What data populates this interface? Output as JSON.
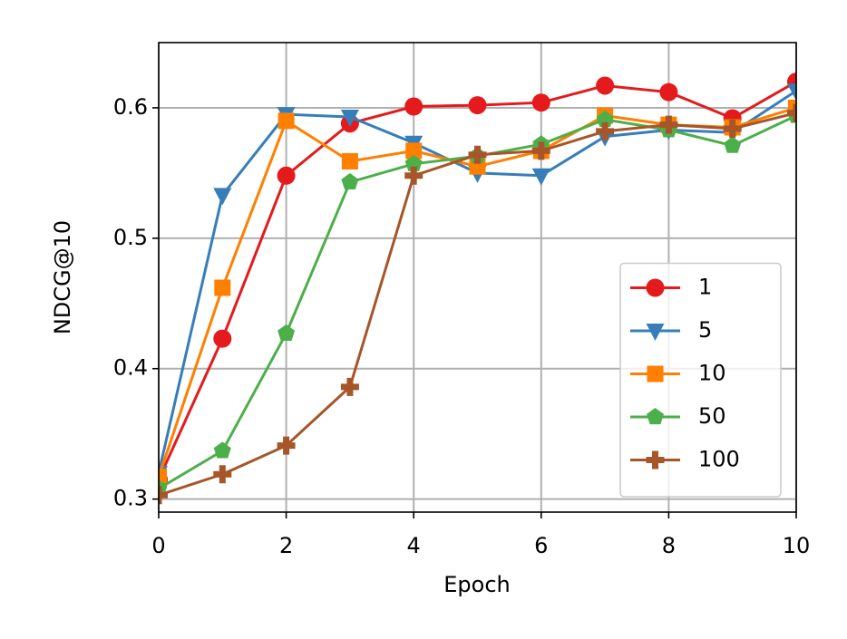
{
  "chart_data": {
    "type": "line",
    "x_label": "Epoch",
    "y_label": "NDCG@10",
    "x": [
      0,
      1,
      2,
      3,
      4,
      5,
      6,
      7,
      8,
      9,
      10
    ],
    "series": [
      {
        "name": "1",
        "color": "#e41a1c",
        "marker": "circle",
        "values": [
          0.315,
          0.423,
          0.548,
          0.588,
          0.601,
          0.602,
          0.604,
          0.617,
          0.612,
          0.592,
          0.62
        ]
      },
      {
        "name": "5",
        "color": "#377eb8",
        "marker": "triangle-down",
        "values": [
          0.32,
          0.533,
          0.595,
          0.593,
          0.573,
          0.55,
          0.548,
          0.578,
          0.583,
          0.581,
          0.613
        ]
      },
      {
        "name": "10",
        "color": "#ff7f00",
        "marker": "square",
        "values": [
          0.317,
          0.462,
          0.59,
          0.559,
          0.567,
          0.555,
          0.567,
          0.594,
          0.587,
          0.585,
          0.6
        ]
      },
      {
        "name": "50",
        "color": "#4daf4a",
        "marker": "pentagon",
        "values": [
          0.308,
          0.337,
          0.427,
          0.543,
          0.557,
          0.563,
          0.572,
          0.591,
          0.583,
          0.571,
          0.594
        ]
      },
      {
        "name": "100",
        "color": "#a65628",
        "marker": "plus",
        "values": [
          0.303,
          0.319,
          0.341,
          0.386,
          0.548,
          0.564,
          0.567,
          0.582,
          0.587,
          0.584,
          0.596
        ]
      }
    ],
    "xlim": [
      0,
      10
    ],
    "xticks": [
      0,
      2,
      4,
      6,
      8,
      10
    ],
    "ylim": [
      0.29,
      0.65
    ],
    "yticks": [
      0.3,
      0.4,
      0.5,
      0.6
    ],
    "grid": true,
    "legend_position": "lower right"
  }
}
